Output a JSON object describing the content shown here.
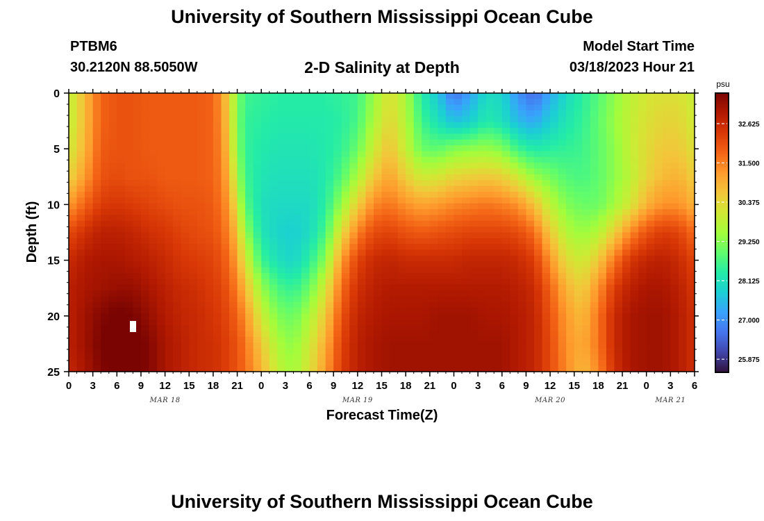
{
  "header": {
    "title": "University of Southern Mississippi Ocean Cube",
    "station_id": "PTBM6",
    "station_coords": "30.2120N  88.5050W",
    "subtitle": "2-D Salinity at Depth",
    "model_start_label": "Model Start Time",
    "model_start_value": "03/18/2023 Hour 21"
  },
  "footer": {
    "title": "University of Southern Mississippi Ocean Cube"
  },
  "chart_data": {
    "type": "heatmap",
    "title": "2-D Salinity at Depth",
    "xlabel": "Forecast Time(Z)",
    "ylabel": "Depth (ft)",
    "x_ticks": [
      "0",
      "3",
      "6",
      "9",
      "12",
      "15",
      "18",
      "21",
      "0",
      "3",
      "6",
      "9",
      "12",
      "15",
      "18",
      "21",
      "0",
      "3",
      "6",
      "9",
      "12",
      "15",
      "18",
      "21",
      "0",
      "3",
      "6"
    ],
    "x_day_labels": [
      {
        "label": "MAR 18",
        "hour": 12
      },
      {
        "label": "MAR 19",
        "hour": 36
      },
      {
        "label": "MAR 20",
        "hour": 60
      },
      {
        "label": "MAR 21",
        "hour": 75
      }
    ],
    "x_range_hours": [
      0,
      78
    ],
    "y_ticks": [
      0,
      5,
      10,
      15,
      20,
      25
    ],
    "y_range_ft": [
      0,
      25
    ],
    "y_inverted": true,
    "colorbar": {
      "unit": "psu",
      "min": 25.5,
      "max": 33.5,
      "tick_labels": [
        "32.625",
        "31.500",
        "30.375",
        "29.250",
        "28.125",
        "27.000",
        "25.875"
      ],
      "colors": [
        "#30123b",
        "#4145ab",
        "#4675ed",
        "#39a2fc",
        "#1bcfd4",
        "#24eca6",
        "#61fc6c",
        "#a4fc3b",
        "#d1e834",
        "#f3c63a",
        "#fe9b2d",
        "#f36315",
        "#d93806",
        "#b11901",
        "#7a0402"
      ]
    },
    "grid": false,
    "salinity_psu": {
      "hours": [
        0,
        2,
        4,
        6,
        8,
        10,
        12,
        14,
        16,
        18,
        19,
        20,
        21,
        22,
        24,
        26,
        28,
        30,
        32,
        34,
        36,
        38,
        40,
        42,
        44,
        46,
        48,
        50,
        52,
        54,
        56,
        58,
        60,
        62,
        64,
        66,
        68,
        70,
        72,
        74,
        76,
        78
      ],
      "depths_ft": [
        0,
        2.5,
        5,
        7.5,
        10,
        12.5,
        15,
        17.5,
        20,
        22.5,
        25
      ],
      "rows": [
        [
          29.8,
          30.8,
          31.8,
          32.0,
          32.0,
          31.9,
          31.9,
          31.9,
          31.9,
          31.8,
          31.2,
          30.4,
          29.2,
          28.6,
          28.5,
          28.4,
          28.4,
          28.4,
          28.4,
          28.5,
          28.6,
          29.4,
          30.2,
          29.6,
          28.3,
          27.7,
          26.6,
          27.2,
          28.0,
          27.9,
          27.0,
          26.5,
          27.3,
          28.0,
          28.4,
          28.8,
          29.3,
          29.8,
          30.1,
          30.2,
          30.2,
          29.9
        ],
        [
          29.8,
          30.8,
          31.8,
          32.0,
          32.0,
          31.9,
          31.9,
          31.9,
          31.9,
          31.8,
          31.3,
          30.5,
          29.2,
          28.5,
          28.4,
          28.3,
          28.3,
          28.3,
          28.3,
          28.4,
          28.7,
          29.6,
          30.4,
          29.7,
          28.6,
          28.1,
          27.6,
          27.8,
          28.3,
          28.1,
          27.5,
          27.3,
          27.8,
          28.2,
          28.5,
          28.9,
          29.4,
          29.9,
          30.2,
          30.4,
          30.4,
          30.0
        ],
        [
          30.0,
          30.9,
          31.9,
          32.0,
          32.0,
          31.9,
          31.9,
          31.9,
          31.9,
          31.8,
          31.4,
          30.6,
          29.3,
          28.5,
          28.3,
          28.2,
          28.2,
          28.2,
          28.3,
          28.5,
          29.0,
          30.0,
          30.7,
          29.9,
          29.0,
          28.9,
          29.2,
          29.3,
          29.4,
          29.2,
          28.6,
          28.3,
          28.4,
          28.5,
          28.6,
          28.9,
          29.3,
          29.9,
          30.3,
          30.6,
          30.6,
          30.2
        ],
        [
          30.4,
          31.2,
          32.0,
          32.1,
          32.0,
          32.0,
          31.9,
          31.9,
          31.9,
          31.8,
          31.5,
          30.9,
          29.6,
          28.6,
          28.2,
          28.1,
          28.1,
          28.1,
          28.3,
          28.8,
          29.6,
          30.6,
          31.1,
          30.5,
          30.0,
          30.1,
          30.4,
          30.5,
          30.6,
          30.5,
          30.0,
          29.4,
          29.1,
          28.8,
          28.7,
          28.9,
          29.3,
          29.8,
          30.4,
          30.8,
          30.9,
          30.5
        ],
        [
          31.2,
          31.8,
          32.3,
          32.4,
          32.3,
          32.2,
          32.1,
          32.0,
          32.0,
          31.9,
          31.6,
          31.2,
          30.1,
          28.8,
          28.1,
          28.0,
          28.0,
          28.0,
          28.4,
          29.4,
          30.5,
          31.4,
          31.6,
          31.3,
          31.1,
          31.2,
          31.4,
          31.5,
          31.6,
          31.5,
          31.3,
          30.7,
          29.8,
          29.2,
          29.0,
          29.0,
          29.5,
          30.1,
          30.9,
          31.3,
          31.3,
          30.9
        ],
        [
          32.1,
          32.5,
          32.8,
          32.8,
          32.7,
          32.5,
          32.4,
          32.2,
          32.1,
          32.0,
          31.8,
          31.4,
          30.7,
          29.4,
          28.2,
          27.9,
          27.8,
          28.0,
          28.7,
          30.3,
          31.5,
          32.1,
          32.2,
          32.0,
          31.9,
          32.0,
          32.1,
          32.2,
          32.2,
          32.2,
          32.1,
          31.7,
          30.6,
          29.7,
          29.4,
          29.7,
          30.5,
          31.4,
          32.0,
          32.3,
          32.2,
          31.7
        ],
        [
          32.6,
          32.9,
          33.0,
          33.0,
          32.9,
          32.8,
          32.6,
          32.4,
          32.3,
          32.2,
          32.0,
          31.7,
          31.1,
          30.1,
          28.6,
          28.1,
          27.9,
          28.4,
          29.3,
          31.2,
          32.2,
          32.6,
          32.7,
          32.6,
          32.6,
          32.6,
          32.6,
          32.7,
          32.7,
          32.7,
          32.6,
          32.3,
          31.3,
          30.3,
          30.0,
          30.6,
          31.6,
          32.4,
          32.7,
          32.8,
          32.6,
          32.2
        ],
        [
          32.8,
          33.0,
          33.1,
          33.2,
          33.2,
          33.0,
          32.8,
          32.6,
          32.5,
          32.3,
          32.2,
          31.9,
          31.5,
          30.8,
          29.4,
          28.7,
          28.5,
          29.0,
          30.1,
          31.7,
          32.5,
          32.8,
          32.9,
          32.9,
          32.9,
          32.9,
          32.9,
          32.9,
          32.9,
          32.9,
          32.8,
          32.6,
          31.8,
          30.9,
          30.5,
          31.3,
          32.3,
          32.8,
          33.0,
          33.0,
          32.8,
          32.4
        ],
        [
          32.8,
          33.1,
          33.4,
          33.6,
          33.5,
          33.2,
          32.9,
          32.7,
          32.6,
          32.4,
          32.3,
          32.1,
          31.8,
          31.3,
          30.0,
          29.2,
          29.0,
          29.6,
          30.6,
          32.0,
          32.7,
          32.9,
          33.0,
          33.0,
          33.0,
          33.1,
          33.1,
          33.1,
          33.0,
          33.0,
          32.9,
          32.7,
          32.0,
          31.2,
          30.8,
          31.6,
          32.6,
          33.0,
          33.1,
          33.1,
          32.9,
          32.5
        ],
        [
          32.8,
          33.1,
          33.5,
          33.7,
          33.7,
          33.4,
          33.0,
          32.8,
          32.6,
          32.5,
          32.4,
          32.2,
          32.0,
          31.6,
          30.6,
          29.6,
          29.3,
          30.0,
          31.0,
          32.2,
          32.8,
          33.0,
          33.1,
          33.1,
          33.1,
          33.1,
          33.1,
          33.1,
          33.1,
          33.1,
          32.9,
          32.7,
          32.1,
          31.3,
          31.0,
          31.6,
          32.6,
          33.0,
          33.1,
          33.1,
          32.9,
          32.5
        ],
        [
          32.7,
          33.0,
          33.4,
          33.6,
          33.6,
          33.4,
          33.0,
          32.8,
          32.6,
          32.5,
          32.4,
          32.2,
          32.0,
          31.7,
          30.9,
          29.9,
          29.5,
          30.2,
          31.2,
          32.3,
          32.8,
          33.0,
          33.1,
          33.1,
          33.1,
          33.1,
          33.1,
          33.1,
          33.1,
          33.1,
          32.9,
          32.7,
          32.1,
          31.4,
          30.8,
          31.4,
          32.5,
          33.0,
          33.1,
          33.1,
          32.9,
          32.5
        ]
      ]
    }
  }
}
